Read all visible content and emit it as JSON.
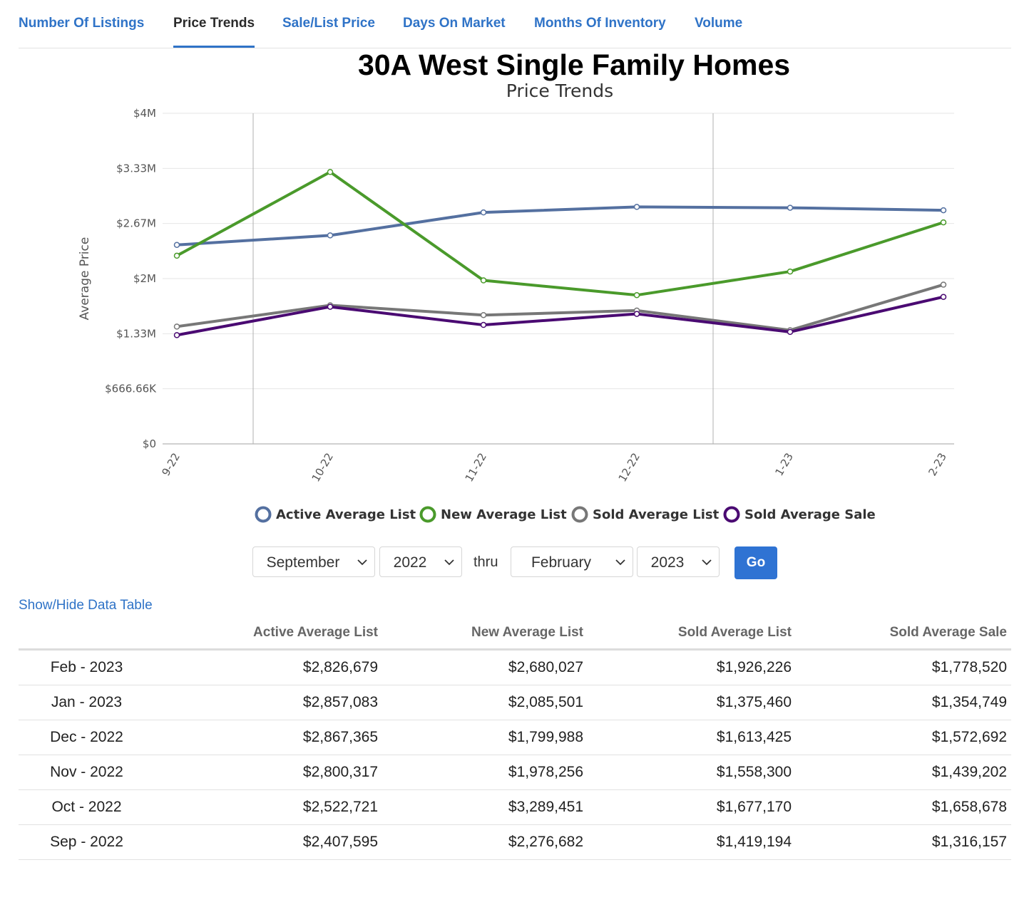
{
  "tabs": [
    {
      "label": "Number Of Listings",
      "active": false
    },
    {
      "label": "Price Trends",
      "active": true
    },
    {
      "label": "Sale/List Price",
      "active": false
    },
    {
      "label": "Days On Market",
      "active": false
    },
    {
      "label": "Months Of Inventory",
      "active": false
    },
    {
      "label": "Volume",
      "active": false
    }
  ],
  "chart_data": {
    "type": "line",
    "title": "30A West Single Family Homes",
    "subtitle": "Price Trends",
    "ylabel": "Average Price",
    "xlabel": "",
    "categories": [
      "9-22",
      "10-22",
      "11-22",
      "12-22",
      "1-23",
      "2-23"
    ],
    "ylim": [
      0,
      4000000
    ],
    "y_ticks": [
      0,
      666660,
      1333330,
      2000000,
      2666670,
      3333330,
      4000000
    ],
    "y_tick_labels": [
      "$0",
      "$666.66K",
      "$1.33M",
      "$2M",
      "$2.67M",
      "$3.33M",
      "$4M"
    ],
    "grid": true,
    "legend_position": "bottom",
    "series": [
      {
        "name": "Active Average List",
        "color": "#5470a0",
        "values": [
          2407595,
          2522721,
          2800317,
          2867365,
          2857083,
          2826679
        ]
      },
      {
        "name": "New Average List",
        "color": "#4a9a2b",
        "values": [
          2276682,
          3289451,
          1978256,
          1799988,
          2085501,
          2680027
        ]
      },
      {
        "name": "Sold Average List",
        "color": "#777777",
        "values": [
          1419194,
          1677170,
          1558300,
          1613425,
          1375460,
          1926226
        ]
      },
      {
        "name": "Sold Average Sale",
        "color": "#4a0a72",
        "values": [
          1316157,
          1658678,
          1439202,
          1572692,
          1354749,
          1778520
        ]
      }
    ]
  },
  "controls": {
    "start_month": "September",
    "start_year": "2022",
    "thru_label": "thru",
    "end_month": "February",
    "end_year": "2023",
    "go_label": "Go"
  },
  "table_toggle": "Show/Hide Data Table",
  "table": {
    "headers": [
      "",
      "Active Average List",
      "New Average List",
      "Sold Average List",
      "Sold Average Sale"
    ],
    "rows": [
      [
        "Feb - 2023",
        "$2,826,679",
        "$2,680,027",
        "$1,926,226",
        "$1,778,520"
      ],
      [
        "Jan - 2023",
        "$2,857,083",
        "$2,085,501",
        "$1,375,460",
        "$1,354,749"
      ],
      [
        "Dec - 2022",
        "$2,867,365",
        "$1,799,988",
        "$1,613,425",
        "$1,572,692"
      ],
      [
        "Nov - 2022",
        "$2,800,317",
        "$1,978,256",
        "$1,558,300",
        "$1,439,202"
      ],
      [
        "Oct - 2022",
        "$2,522,721",
        "$3,289,451",
        "$1,677,170",
        "$1,658,678"
      ],
      [
        "Sep - 2022",
        "$2,407,595",
        "$2,276,682",
        "$1,419,194",
        "$1,316,157"
      ]
    ]
  }
}
